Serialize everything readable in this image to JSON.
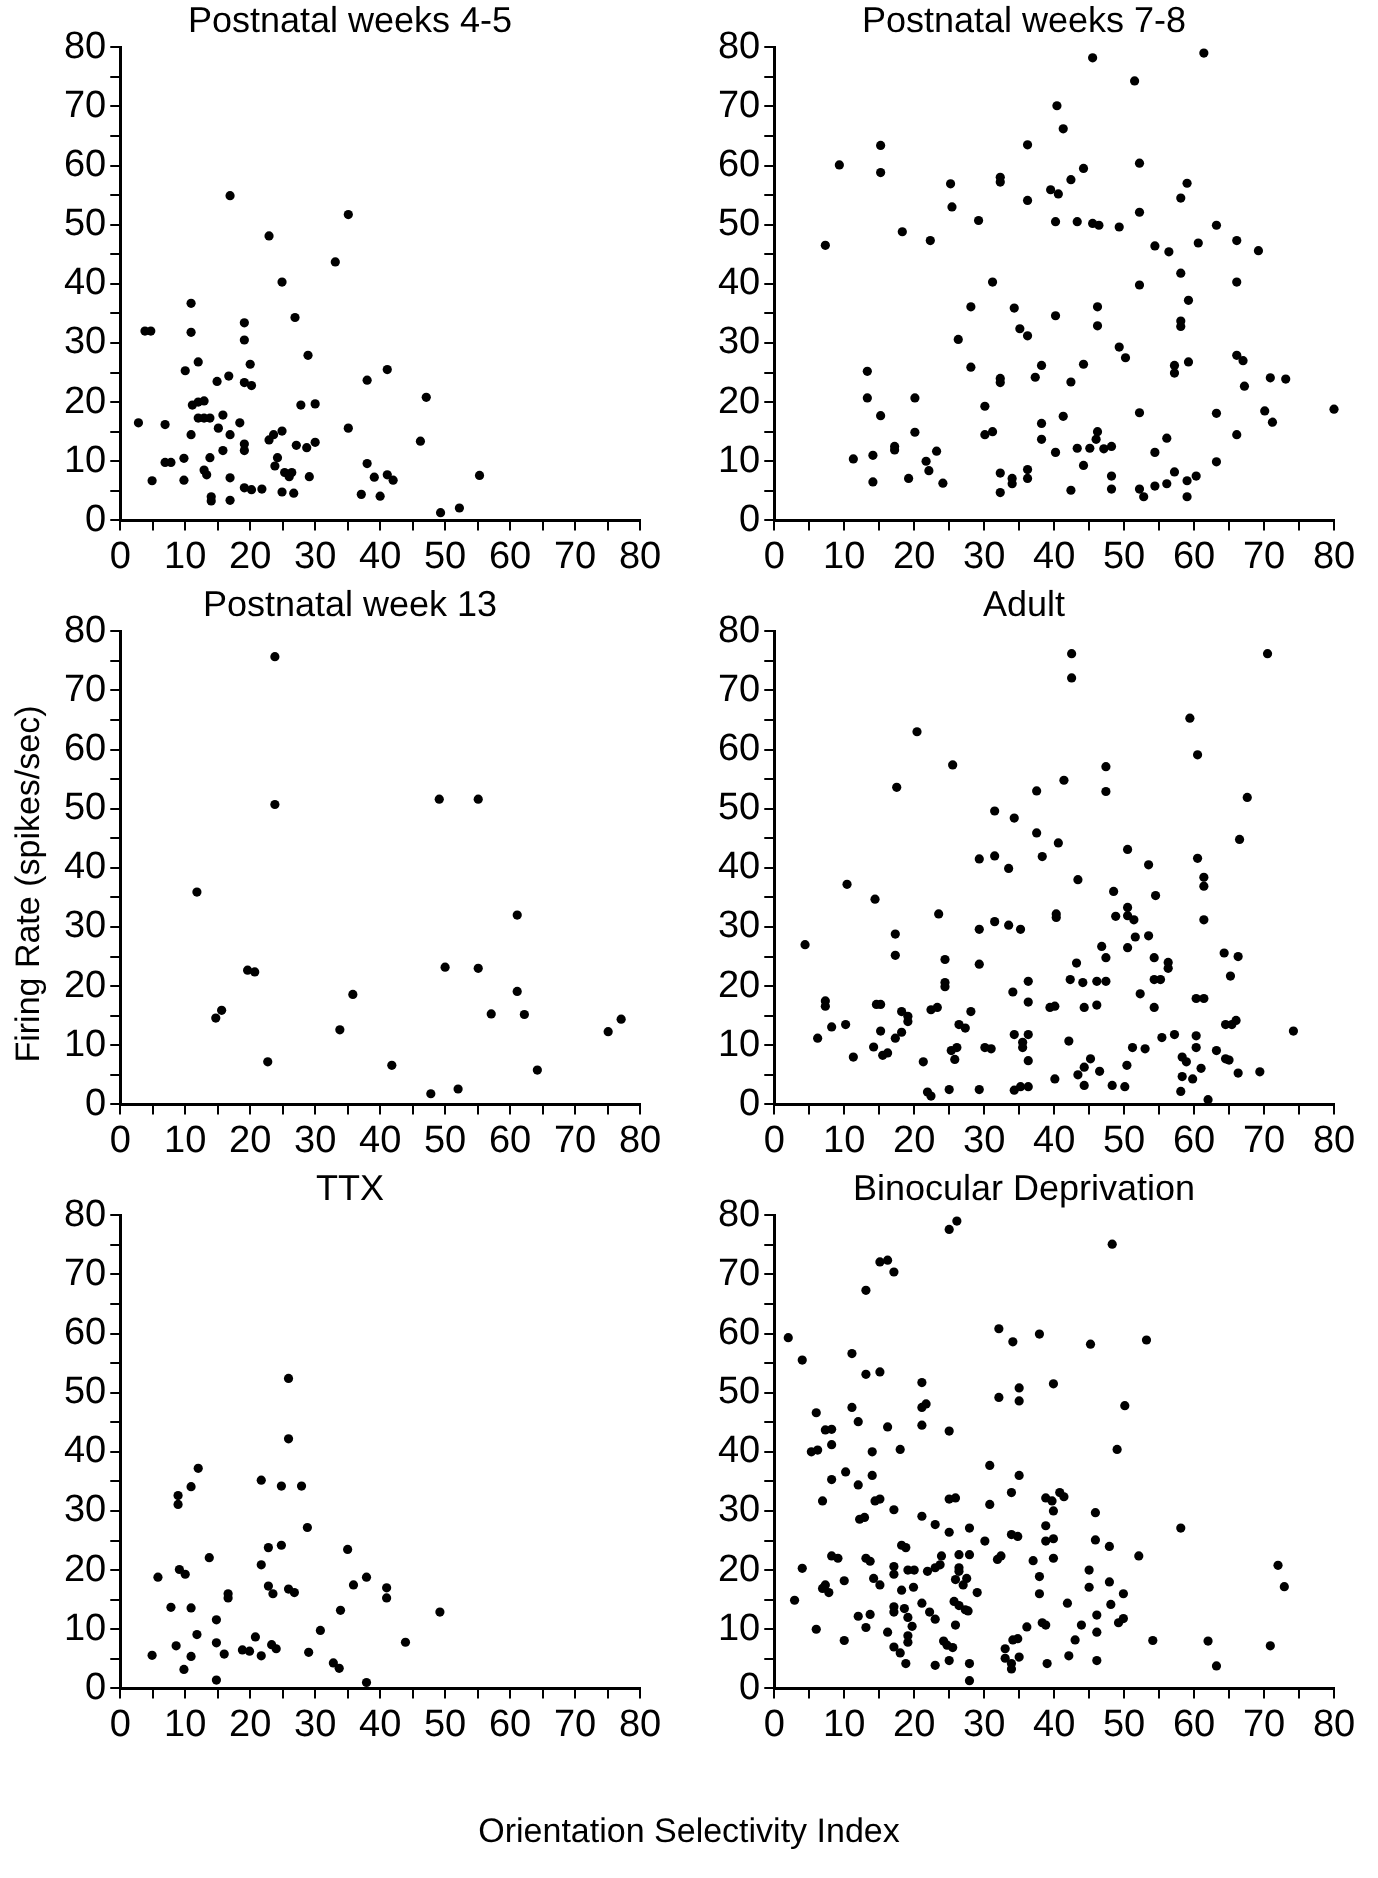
{
  "chart_data": [
    {
      "type": "scatter",
      "title": "Postnatal weeks 4-5",
      "xlim": [
        0,
        80
      ],
      "ylim": [
        0,
        80
      ],
      "marker": "circle",
      "xticks": [
        0,
        {
          "value": 5,
          "label": null
        },
        10,
        {
          "value": 15,
          "label": null
        },
        20,
        {
          "value": 25,
          "label": null
        },
        30,
        {
          "value": 35,
          "label": null
        },
        40,
        {
          "value": 45,
          "label": null
        },
        50,
        {
          "value": 55,
          "label": null
        },
        60,
        {
          "value": 65,
          "label": null
        },
        70,
        {
          "value": 75,
          "label": null
        },
        80
      ],
      "yticks": [
        0,
        {
          "value": 5,
          "label": null
        },
        10,
        {
          "value": 15,
          "label": null
        },
        20,
        {
          "value": 25,
          "label": null
        },
        30,
        {
          "value": 35,
          "label": null
        },
        40,
        {
          "value": 45,
          "label": null
        },
        50,
        {
          "value": 55,
          "label": null
        },
        60,
        {
          "value": 65,
          "label": null
        },
        70,
        {
          "value": 75,
          "label": null
        },
        80
      ],
      "series": [
        {
          "color": "#000000",
          "x": [
            2.8,
            3.8,
            4.7,
            4.9,
            6.9,
            6.9,
            7.8,
            9.8,
            9.8,
            10,
            10.9,
            10.9,
            10.9,
            11.1,
            12,
            12,
            12.9,
            12,
            12.9,
            13.8,
            12.9,
            13.3,
            13.8,
            14,
            14,
            14.9,
            15.1,
            15.8,
            15.8,
            16.7,
            16.9,
            16.9,
            16.9,
            16.9,
            18.4,
            19.1,
            19.1,
            19.1,
            19.1,
            19.1,
            19.1,
            20,
            20.2,
            20.2,
            21.8,
            22.9,
            22.9,
            23.6,
            23.8,
            24.2,
            24.9,
            24.9,
            24.9,
            25.3,
            26,
            26.4,
            26.7,
            26.9,
            27.1,
            27.8,
            28.7,
            28.9,
            29.1,
            30,
            30,
            33.1,
            35.1,
            35.1,
            37.1,
            38,
            38,
            39.1,
            40,
            41.1,
            41.1,
            42,
            46.2,
            47.1,
            49.3,
            52.2,
            55.3
          ],
          "values": [
            16.5,
            32,
            32,
            6.7,
            16.2,
            9.8,
            9.8,
            10.5,
            6.8,
            25.3,
            36.7,
            31.8,
            14.5,
            19.5,
            26.8,
            20,
            20.2,
            17.3,
            17.3,
            17.3,
            8.5,
            7.7,
            10.6,
            4,
            3.3,
            23.5,
            15.6,
            11.8,
            17.8,
            24.4,
            54.9,
            14.5,
            7.2,
            3.4,
            16.5,
            33.4,
            30.5,
            23.3,
            12.9,
            11.8,
            5.5,
            26.4,
            22.8,
            5.2,
            5.3,
            48.1,
            13.6,
            14.5,
            9.2,
            10.6,
            40.3,
            15.1,
            4.8,
            8.1,
            7.4,
            8.1,
            4.6,
            34.3,
            12.7,
            19.5,
            12.3,
            27.9,
            7.4,
            19.7,
            13.2,
            43.7,
            51.7,
            15.6,
            4.4,
            23.7,
            9.6,
            7.3,
            4.1,
            25.5,
            7.7,
            6.8,
            13.4,
            20.8,
            1.3,
            2.1,
            7.6
          ]
        }
      ]
    },
    {
      "type": "scatter",
      "title": "Postnatal weeks 7-8",
      "xlim": [
        0,
        80
      ],
      "ylim": [
        0,
        80
      ],
      "marker": "circle",
      "xticks": [
        0,
        {
          "value": 5,
          "label": null
        },
        10,
        {
          "value": 15,
          "label": null
        },
        20,
        {
          "value": 25,
          "label": null
        },
        30,
        {
          "value": 35,
          "label": null
        },
        40,
        {
          "value": 45,
          "label": null
        },
        50,
        {
          "value": 55,
          "label": null
        },
        60,
        {
          "value": 65,
          "label": null
        },
        70,
        {
          "value": 75,
          "label": null
        },
        80
      ],
      "yticks": [
        0,
        {
          "value": 5,
          "label": null
        },
        10,
        {
          "value": 15,
          "label": null
        },
        20,
        {
          "value": 25,
          "label": null
        },
        30,
        {
          "value": 35,
          "label": null
        },
        40,
        {
          "value": 45,
          "label": null
        },
        50,
        {
          "value": 55,
          "label": null
        },
        60,
        {
          "value": 65,
          "label": null
        },
        70,
        {
          "value": 75,
          "label": null
        },
        80
      ],
      "series": [
        {
          "color": "#000000",
          "x": [
            7.3,
            9.3,
            11.3,
            13.3,
            13.3,
            14.1,
            14.1,
            15.2,
            15.2,
            15.2,
            17.2,
            17.2,
            18.3,
            19.2,
            20.1,
            20.1,
            21.7,
            22.1,
            22.3,
            23.2,
            24.1,
            25.2,
            25.4,
            26.3,
            28.1,
            28.1,
            29.2,
            30.1,
            30.1,
            31.2,
            31.2,
            32.3,
            32.3,
            32.3,
            32.3,
            32.3,
            32.3,
            34,
            34,
            34.3,
            35.1,
            36.2,
            36.2,
            36.2,
            36.2,
            36.2,
            37.3,
            38.2,
            38.2,
            38.2,
            40.2,
            40.2,
            40.2,
            40.4,
            41.3,
            41.3,
            39.5,
            40.6,
            42.4,
            42.4,
            42.4,
            43.3,
            43.3,
            44.2,
            44.2,
            44.2,
            45.1,
            45.5,
            45.5,
            46,
            46.2,
            46.2,
            46.2,
            46.4,
            47.1,
            48.2,
            48.2,
            48.2,
            49.3,
            49.3,
            50.2,
            51.5,
            52.2,
            52.2,
            52.2,
            52.2,
            52.2,
            52.8,
            54.4,
            54.4,
            54.4,
            56.1,
            56.1,
            56.4,
            57.2,
            57.2,
            57.2,
            58.1,
            58.1,
            58.1,
            58.1,
            59,
            59,
            59,
            59.2,
            59.2,
            60.3,
            60.6,
            63.2,
            63.2,
            63.2,
            66.1,
            66.1,
            66.1,
            66.1,
            67,
            67.2,
            69.2,
            70.1,
            70.9,
            71.2,
            73.1,
            80,
            61.4
          ],
          "values": [
            46.5,
            60.1,
            10.4,
            25.2,
            20.7,
            11,
            6.5,
            63.4,
            58.8,
            17.7,
            12.5,
            11.9,
            48.8,
            7.1,
            20.7,
            14.9,
            10,
            8.4,
            47.3,
            11.7,
            6.3,
            56.9,
            53,
            30.6,
            36.1,
            25.9,
            50.7,
            19.3,
            14.5,
            15,
            40.3,
            58,
            57.2,
            24,
            23.3,
            8,
            4.7,
            7.1,
            6.2,
            35.9,
            32.4,
            31.2,
            63.5,
            54.1,
            8.6,
            7.1,
            24.2,
            26.2,
            16.4,
            13.7,
            34.6,
            50.5,
            11.5,
            70.1,
            66.2,
            17.6,
            55.9,
            55.2,
            57.6,
            5.1,
            23.4,
            50.5,
            12.2,
            59.5,
            26.4,
            9.3,
            12.2,
            78.2,
            50.2,
            13.7,
            36.1,
            32.9,
            15,
            49.9,
            12.1,
            12.5,
            7.5,
            5.3,
            49.6,
            29.3,
            27.5,
            74.3,
            52.1,
            60.4,
            39.8,
            18.2,
            5.3,
            4,
            11.5,
            5.8,
            46.4,
            13.9,
            6.2,
            45.4,
            8.2,
            26.2,
            24.9,
            54.5,
            41.8,
            33.7,
            32.8,
            57,
            6.7,
            4,
            37.2,
            26.8,
            7.5,
            46.9,
            49.9,
            18.1,
            9.9,
            47.3,
            40.3,
            27.9,
            14.5,
            27,
            22.7,
            45.6,
            18.5,
            24.1,
            16.6,
            23.9,
            18.8,
            79
          ]
        }
      ]
    },
    {
      "type": "scatter",
      "title": "Postnatal week 13",
      "ylabel": "Firing Rate (spikes/sec)",
      "xlim": [
        0,
        80
      ],
      "ylim": [
        0,
        80
      ],
      "marker": "circle",
      "xticks": [
        0,
        {
          "value": 5,
          "label": null
        },
        10,
        {
          "value": 15,
          "label": null
        },
        20,
        {
          "value": 25,
          "label": null
        },
        30,
        {
          "value": 35,
          "label": null
        },
        40,
        {
          "value": 45,
          "label": null
        },
        50,
        {
          "value": 55,
          "label": null
        },
        60,
        {
          "value": 65,
          "label": null
        },
        70,
        {
          "value": 75,
          "label": null
        },
        80
      ],
      "yticks": [
        0,
        {
          "value": 5,
          "label": null
        },
        10,
        {
          "value": 15,
          "label": null
        },
        20,
        {
          "value": 25,
          "label": null
        },
        30,
        {
          "value": 35,
          "label": null
        },
        40,
        {
          "value": 45,
          "label": null
        },
        50,
        {
          "value": 55,
          "label": null
        },
        60,
        {
          "value": 65,
          "label": null
        },
        70,
        {
          "value": 75,
          "label": null
        },
        80
      ],
      "series": [
        {
          "color": "#000000",
          "x": [
            11.8,
            14.7,
            15.6,
            19.6,
            20.7,
            22.7,
            23.8,
            23.8,
            33.8,
            35.8,
            41.8,
            47.8,
            49.1,
            50,
            52,
            55.1,
            55.1,
            57.1,
            61.1,
            61.1,
            62.2,
            64.2,
            75.1,
            77.1
          ],
          "values": [
            35.9,
            14.6,
            15.9,
            22.7,
            22.4,
            7.2,
            75.7,
            50.7,
            12.6,
            18.6,
            6.6,
            1.8,
            51.6,
            23.2,
            2.6,
            51.6,
            23,
            15.3,
            32,
            19.1,
            15.2,
            5.8,
            12.3,
            14.4
          ]
        }
      ]
    },
    {
      "type": "scatter",
      "title": "Adult",
      "xlim": [
        0,
        80
      ],
      "ylim": [
        0,
        80
      ],
      "marker": "circle",
      "xticks": [
        0,
        {
          "value": 5,
          "label": null
        },
        10,
        {
          "value": 15,
          "label": null
        },
        20,
        {
          "value": 25,
          "label": null
        },
        30,
        {
          "value": 35,
          "label": null
        },
        40,
        {
          "value": 45,
          "label": null
        },
        50,
        {
          "value": 55,
          "label": null
        },
        60,
        {
          "value": 65,
          "label": null
        },
        70,
        {
          "value": 75,
          "label": null
        },
        80
      ],
      "yticks": [
        0,
        {
          "value": 5,
          "label": null
        },
        10,
        {
          "value": 15,
          "label": null
        },
        20,
        {
          "value": 25,
          "label": null
        },
        30,
        {
          "value": 35,
          "label": null
        },
        40,
        {
          "value": 45,
          "label": null
        },
        50,
        {
          "value": 55,
          "label": null
        },
        60,
        {
          "value": 65,
          "label": null
        },
        70,
        {
          "value": 75,
          "label": null
        },
        80
      ],
      "series": [
        {
          "color": "#000000",
          "x": [
            4.4,
            6.2,
            7.3,
            7.3,
            8.2,
            10.2,
            10.4,
            11.3,
            14.4,
            14.2,
            14.6,
            15.2,
            15.2,
            15.5,
            16.2,
            17.3,
            17.3,
            17.5,
            17.3,
            18.2,
            18.2,
            19.1,
            19.1,
            20.4,
            21.3,
            21.9,
            22.4,
            22.4,
            23.3,
            23.5,
            24.4,
            24.4,
            24.4,
            25.3,
            25.5,
            25.8,
            25,
            26.1,
            26.4,
            27.3,
            28.1,
            29.3,
            29.3,
            29.3,
            29.3,
            30.1,
            31,
            31.5,
            31.5,
            31.5,
            33.5,
            33.5,
            34.1,
            34.3,
            34.3,
            34.3,
            35.2,
            35.2,
            35.5,
            35.5,
            36.3,
            36.3,
            36.3,
            36.3,
            36.3,
            37.5,
            37.5,
            38.3,
            39.4,
            40.1,
            40.1,
            40.3,
            40.3,
            40.6,
            41.4,
            42.1,
            42.3,
            42.5,
            42.5,
            43.2,
            43.4,
            43.4,
            44.1,
            44.3,
            44.3,
            44.3,
            45.2,
            46.1,
            46.1,
            46.5,
            46.8,
            47.4,
            47.4,
            47.4,
            47.4,
            48.3,
            48.5,
            48.8,
            50.1,
            50.4,
            50.5,
            50.5,
            50.5,
            50.5,
            51.2,
            51.4,
            51.6,
            52.3,
            53,
            53.5,
            53.5,
            54.3,
            54.3,
            54.3,
            55.2,
            54.5,
            55.4,
            56.3,
            56.3,
            57.2,
            58.1,
            58.3,
            58.3,
            58.9,
            59.4,
            59.8,
            60.3,
            60.3,
            60.3,
            60.5,
            60.5,
            61,
            61.4,
            61.4,
            61.4,
            61.4,
            62,
            63.2,
            64.3,
            64.5,
            64.5,
            65.2,
            65,
            65.4,
            66,
            66.3,
            66.5,
            66.3,
            67.6,
            69.4,
            70.5,
            74.2
          ],
          "values": [
            27,
            11.2,
            17.5,
            16.6,
            13.1,
            13.5,
            37.2,
            8,
            34.7,
            9.7,
            16.9,
            16.9,
            12.4,
            8.3,
            8.7,
            28.8,
            25.2,
            53.6,
            11.2,
            12.2,
            15.7,
            14.9,
            14,
            63,
            7.2,
            2.1,
            1.4,
            16,
            16.4,
            32.2,
            24.5,
            20.6,
            19.9,
            9.1,
            57.4,
            7.6,
            2.5,
            9.6,
            13.5,
            12.9,
            15.7,
            23.7,
            29.6,
            41.5,
            2.5,
            9.6,
            9.4,
            42,
            49.6,
            30.9,
            39.9,
            30.3,
            19,
            48.4,
            11.8,
            2.4,
            29.6,
            3,
            10.5,
            9.6,
            3,
            20.8,
            17.3,
            7.4,
            11.8,
            53,
            45.9,
            41.9,
            16.4,
            16.6,
            4.3,
            32.2,
            31.6,
            44.2,
            54.8,
            10.7,
            21.1,
            76.2,
            72.1,
            23.9,
            38,
            5,
            20.6,
            16.4,
            3.2,
            6.3,
            7.7,
            16.8,
            20.8,
            5.6,
            26.7,
            57.1,
            52.9,
            24.8,
            20.8,
            3.2,
            36,
            31.8,
            3,
            6.6,
            43.1,
            33.3,
            26.5,
            31.9,
            9.6,
            31.2,
            28.3,
            18.7,
            9.4,
            40.5,
            28.5,
            16.4,
            24.8,
            21.1,
            21.1,
            35.3,
            11.3,
            24,
            23,
            11.8,
            2.2,
            8,
            4.7,
            7.2,
            65.3,
            4.3,
            11.6,
            9.6,
            17.9,
            59.1,
            41.6,
            6.1,
            17.9,
            38.4,
            36.9,
            31.2,
            0.8,
            9.1,
            25.6,
            13.5,
            7.7,
            21.7,
            7.5,
            13.5,
            14.2,
            25,
            44.8,
            5.3,
            51.9,
            5.5,
            76.2,
            12.4
          ]
        }
      ]
    },
    {
      "type": "scatter",
      "title": "TTX",
      "xlabel": "Orientation Selectivity Index",
      "xlim": [
        0,
        80
      ],
      "ylim": [
        0,
        80
      ],
      "marker": "circle",
      "xticks": [
        0,
        {
          "value": 5,
          "label": null
        },
        10,
        {
          "value": 15,
          "label": null
        },
        20,
        {
          "value": 25,
          "label": null
        },
        30,
        {
          "value": 35,
          "label": null
        },
        40,
        {
          "value": 45,
          "label": null
        },
        50,
        {
          "value": 55,
          "label": null
        },
        60,
        {
          "value": 65,
          "label": null
        },
        70,
        {
          "value": 75,
          "label": null
        },
        80
      ],
      "yticks": [
        0,
        {
          "value": 5,
          "label": null
        },
        10,
        {
          "value": 15,
          "label": null
        },
        20,
        {
          "value": 25,
          "label": null
        },
        30,
        {
          "value": 35,
          "label": null
        },
        40,
        {
          "value": 45,
          "label": null
        },
        50,
        {
          "value": 55,
          "label": null
        },
        60,
        {
          "value": 65,
          "label": null
        },
        70,
        {
          "value": 75,
          "label": null
        },
        80
      ],
      "series": [
        {
          "color": "#000000",
          "x": [
            4.9,
            5.8,
            7.8,
            8.6,
            8.9,
            8.9,
            9.1,
            10,
            9.8,
            10.9,
            10.9,
            10.9,
            11.8,
            12,
            13.7,
            14.8,
            14.8,
            14.8,
            16,
            16.6,
            16.6,
            18.8,
            19.9,
            20.8,
            21.7,
            21.7,
            21.7,
            22.8,
            22.8,
            23.3,
            23.5,
            24,
            24.8,
            24.8,
            25.9,
            25.9,
            25.9,
            26.8,
            27.9,
            28.8,
            29,
            30.8,
            32.8,
            33.7,
            33.9,
            35,
            35.9,
            37.9,
            37.9,
            41,
            41,
            43.9,
            49.2
          ],
          "values": [
            5.6,
            18.8,
            13.7,
            7.2,
            32.6,
            31.1,
            20.1,
            19.3,
            3.2,
            34.1,
            13.6,
            5.4,
            9.1,
            37.2,
            22.1,
            11.6,
            7.7,
            1.4,
            5.8,
            16,
            15.3,
            6.5,
            6.3,
            8.7,
            20.9,
            5.5,
            35.2,
            23.8,
            17.3,
            7.4,
            16,
            6.7,
            24.2,
            34.2,
            52.4,
            42.2,
            16.8,
            16.2,
            34.2,
            27.2,
            6.1,
            9.8,
            4.3,
            3.4,
            13.2,
            23.5,
            17.5,
            18.8,
            1,
            17,
            15.3,
            7.8,
            12.9
          ]
        }
      ]
    },
    {
      "type": "scatter",
      "title": "Binocular Deprivation",
      "xlim": [
        0,
        80
      ],
      "ylim": [
        0,
        80
      ],
      "marker": "circle",
      "xticks": [
        0,
        {
          "value": 5,
          "label": null
        },
        10,
        {
          "value": 15,
          "label": null
        },
        20,
        {
          "value": 25,
          "label": null
        },
        30,
        {
          "value": 35,
          "label": null
        },
        40,
        {
          "value": 45,
          "label": null
        },
        50,
        {
          "value": 55,
          "label": null
        },
        60,
        {
          "value": 65,
          "label": null
        },
        70,
        {
          "value": 75,
          "label": null
        },
        80
      ],
      "yticks": [
        0,
        {
          "value": 5,
          "label": null
        },
        10,
        {
          "value": 15,
          "label": null
        },
        20,
        {
          "value": 25,
          "label": null
        },
        30,
        {
          "value": 35,
          "label": null
        },
        40,
        {
          "value": 45,
          "label": null
        },
        50,
        {
          "value": 55,
          "label": null
        },
        60,
        {
          "value": 65,
          "label": null
        },
        70,
        {
          "value": 75,
          "label": null
        },
        80
      ],
      "series": [
        {
          "color": "#000000",
          "x": [
            2,
            2.9,
            4,
            4,
            6,
            6,
            5.3,
            6.2,
            6.9,
            6.9,
            7.3,
            7.8,
            7.3,
            8.2,
            8.2,
            8.2,
            8.2,
            9.1,
            10,
            10,
            10.2,
            11.1,
            11.1,
            12,
            12,
            12,
            12.2,
            12.9,
            13.1,
            13.1,
            13.1,
            13.7,
            13.1,
            13.7,
            14,
            14,
            14.2,
            14.4,
            15.1,
            15.1,
            16.2,
            15.1,
            15.1,
            16.2,
            16.2,
            17.1,
            17.1,
            17.1,
            17.1,
            17.1,
            17.1,
            17.1,
            18,
            18,
            18.2,
            18.8,
            18.2,
            18.6,
            18.8,
            19.1,
            20,
            19.1,
            19.1,
            19.1,
            19.7,
            19.9,
            21.1,
            21.1,
            21.7,
            21.1,
            21.1,
            21.1,
            21.9,
            22.2,
            23,
            23,
            23.7,
            23,
            23,
            23.9,
            24.2,
            24.7,
            25,
            25,
            25,
            25,
            25.9,
            25,
            25.5,
            25.7,
            26.4,
            25.9,
            25.9,
            26.4,
            26.4,
            26.4,
            26.1,
            27,
            27.5,
            27.3,
            27.7,
            27.9,
            27.9,
            27.9,
            27.9,
            29,
            30.1,
            30.8,
            30.8,
            31.9,
            32.4,
            32.1,
            32.1,
            33,
            33,
            33.9,
            33.9,
            33.9,
            33.9,
            34.8,
            34.1,
            34.1,
            34.8,
            35,
            35,
            35,
            35,
            36.1,
            37,
            37.9,
            37.9,
            37.9,
            38.3,
            38.8,
            38.8,
            38.8,
            38.8,
            39,
            39.7,
            39.9,
            39.9,
            39.9,
            39.9,
            40.8,
            41.4,
            41.9,
            42.1,
            43,
            43.9,
            45,
            45,
            45.2,
            45.9,
            45.9,
            46.1,
            46.1,
            46.1,
            47.9,
            47.9,
            48.1,
            48.3,
            49,
            49.2,
            49.9,
            49.9,
            50.1,
            52.1,
            53.2,
            54.1,
            58.1,
            62,
            63.2,
            70.9,
            72,
            72.9
          ],
          "values": [
            59.3,
            14.9,
            55.5,
            20.3,
            10,
            46.6,
            40,
            40.3,
            31.7,
            16.9,
            17.5,
            16.2,
            43.7,
            43.8,
            41.2,
            35.3,
            22.4,
            22,
            8.1,
            18.2,
            36.6,
            56.6,
            47.5,
            34.4,
            45.1,
            12.2,
            28.6,
            28.9,
            53.1,
            67.3,
            22,
            21.5,
            10.3,
            12.5,
            40,
            36,
            18.6,
            31.7,
            32,
            72.1,
            72.4,
            53.5,
            17.5,
            44.2,
            9.5,
            70.4,
            30.2,
            20.6,
            19.3,
            13.8,
            12.9,
            7,
            40.4,
            6,
            24.2,
            23.8,
            16.6,
            13.5,
            4.2,
            20,
            20,
            12,
            8.9,
            7.8,
            10.5,
            17.1,
            51.7,
            47.5,
            48.1,
            44.5,
            29.1,
            14.4,
            19.8,
            12.9,
            11.7,
            20.4,
            20.9,
            27.7,
            3.9,
            22.4,
            8,
            7.3,
            77.6,
            43.5,
            26.4,
            32,
            32.2,
            4.7,
            6.9,
            14.7,
            14,
            18.4,
            10.7,
            22.6,
            20.4,
            19.8,
            79,
            17.5,
            18.6,
            13.3,
            13.1,
            27.1,
            22.6,
            4.2,
            1.3,
            16.2,
            24.9,
            37.7,
            31.1,
            21.8,
            22.4,
            49.2,
            60.8,
            6.7,
            5.1,
            4.2,
            3.3,
            33.1,
            26,
            25.7,
            58.6,
            8.2,
            8.4,
            50.8,
            48.6,
            36,
            5.3,
            10.4,
            21.6,
            59.9,
            18.9,
            16,
            11.1,
            10.7,
            27.5,
            24.9,
            32.2,
            4.2,
            31.7,
            30,
            51.5,
            25.3,
            22,
            33.1,
            32.4,
            14.4,
            5.5,
            8.2,
            10.7,
            20,
            17.1,
            58.2,
            29.7,
            25.1,
            12.4,
            9.5,
            4.7,
            24,
            18,
            14.2,
            75.1,
            40.4,
            11.1,
            11.8,
            16,
            47.8,
            22.4,
            58.9,
            8.1,
            27.1,
            8,
            3.8,
            7.2,
            20.8,
            17.2
          ]
        }
      ]
    }
  ]
}
